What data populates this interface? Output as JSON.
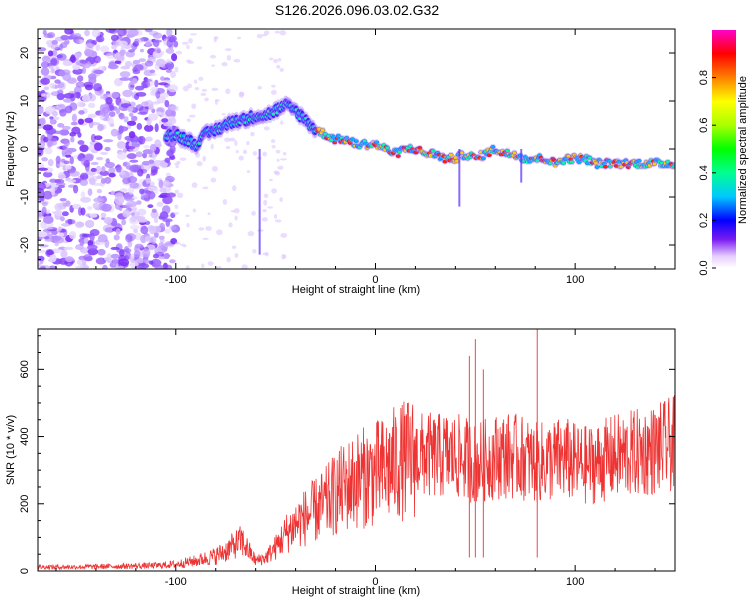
{
  "title": "S126.2026.096.03.02.G32",
  "chart_data": [
    {
      "type": "heatmap",
      "title": "S126.2026.096.03.02.G32",
      "xlabel": "Height of straight line (km)",
      "ylabel": "Frequency (Hz)",
      "xlim": [
        -169,
        150
      ],
      "ylim": [
        -25,
        25
      ],
      "xticks": [
        -100,
        0,
        100
      ],
      "yticks": [
        -20,
        -10,
        0,
        10,
        20
      ],
      "colorbar": {
        "label": "Normalized spectral amplitude",
        "range": [
          0,
          1
        ],
        "ticks": [
          0.0,
          0.2,
          0.4,
          0.6,
          0.8
        ]
      },
      "ridge_frequency_trace": {
        "x": [
          -100,
          -95,
          -90,
          -85,
          -80,
          -75,
          -70,
          -65,
          -60,
          -55,
          -50,
          -45,
          -40,
          -35,
          -30,
          -25,
          -20,
          -15,
          -10,
          -5,
          0,
          5,
          10,
          15,
          20,
          25,
          30,
          35,
          40,
          45,
          50,
          55,
          60,
          65,
          70,
          75,
          80,
          85,
          90,
          95,
          100,
          105,
          110,
          115,
          120,
          125,
          130,
          135,
          140,
          145,
          150
        ],
        "y": [
          3,
          2,
          1,
          3,
          4,
          5,
          6,
          6,
          7,
          7,
          8,
          9,
          8,
          6,
          4,
          3,
          2,
          2,
          1,
          1,
          1,
          0,
          -1,
          0,
          0,
          -1,
          -1,
          -2,
          -2,
          -1,
          -2,
          -1,
          0,
          -1,
          -1,
          -2,
          -2,
          -2,
          -3,
          -2,
          -2,
          -2,
          -3,
          -3,
          -3,
          -3,
          -3,
          -3,
          -3,
          -3,
          -3
        ]
      }
    },
    {
      "type": "line",
      "xlabel": "Height of straight line (km)",
      "ylabel": "SNR (10 * v/v)",
      "xlim": [
        -169,
        150
      ],
      "ylim": [
        0,
        720
      ],
      "xticks": [
        -100,
        0,
        100
      ],
      "yticks": [
        0,
        200,
        400,
        600
      ],
      "series": [
        {
          "name": "SNR",
          "color": "#ee3333",
          "envelope_x": [
            -169,
            -150,
            -130,
            -110,
            -100,
            -90,
            -80,
            -75,
            -70,
            -67,
            -60,
            -55,
            -50,
            -45,
            -40,
            -35,
            -30,
            -25,
            -20,
            -15,
            -10,
            -5,
            0,
            5,
            10,
            15,
            20,
            25,
            30,
            35,
            40,
            45,
            50,
            55,
            60,
            65,
            70,
            75,
            80,
            85,
            90,
            95,
            100,
            105,
            110,
            115,
            120,
            125,
            130,
            135,
            140,
            145,
            150
          ],
          "envelope_y": [
            12,
            12,
            14,
            16,
            20,
            30,
            45,
            60,
            80,
            90,
            30,
            40,
            70,
            110,
            140,
            160,
            180,
            200,
            230,
            250,
            270,
            280,
            290,
            300,
            320,
            330,
            340,
            345,
            340,
            345,
            340,
            335,
            320,
            330,
            340,
            345,
            340,
            335,
            320,
            325,
            330,
            335,
            320,
            315,
            320,
            330,
            340,
            345,
            350,
            355,
            360,
            370,
            380
          ],
          "spikes_x": [
            47,
            50,
            81,
            54
          ],
          "spikes_y": [
            640,
            690,
            720,
            600
          ]
        }
      ]
    }
  ]
}
